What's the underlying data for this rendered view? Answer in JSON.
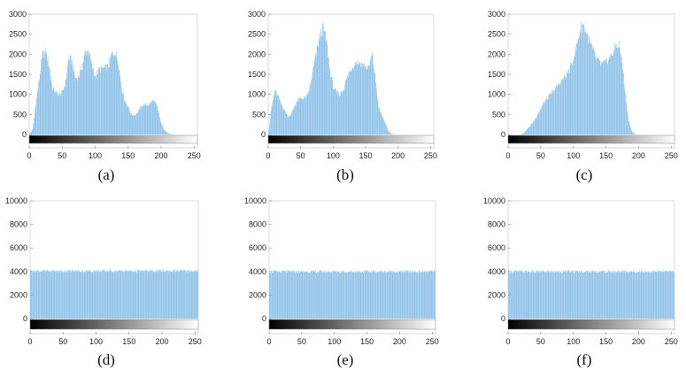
{
  "chart_data": [
    {
      "id": "a",
      "caption": "(a)",
      "type": "bar",
      "xlim": [
        0,
        255
      ],
      "ylim": [
        0,
        3000
      ],
      "xticks": [
        0,
        50,
        100,
        150,
        200,
        250
      ],
      "yticks": [
        0,
        500,
        1000,
        1500,
        2000,
        2500,
        3000
      ],
      "bar_color": "#8cc0e8",
      "colorbar": "grayscale 0-255",
      "profile_x": [
        0,
        5,
        10,
        15,
        20,
        25,
        30,
        35,
        40,
        45,
        50,
        55,
        60,
        65,
        70,
        75,
        80,
        85,
        90,
        95,
        100,
        105,
        110,
        115,
        120,
        125,
        130,
        135,
        140,
        145,
        150,
        155,
        160,
        165,
        170,
        175,
        180,
        185,
        190,
        195,
        200,
        205,
        210,
        215,
        220,
        225,
        230,
        235,
        240,
        245,
        250,
        255
      ],
      "profile_y": [
        0,
        150,
        800,
        1400,
        2000,
        2050,
        1700,
        1150,
        1050,
        1000,
        1050,
        1300,
        1950,
        1800,
        1400,
        1450,
        1700,
        2050,
        2100,
        1700,
        1450,
        1600,
        1650,
        1650,
        1700,
        2000,
        2050,
        1850,
        1200,
        850,
        700,
        500,
        480,
        550,
        700,
        750,
        730,
        800,
        860,
        650,
        300,
        120,
        40,
        10,
        0,
        0,
        0,
        0,
        0,
        0,
        0,
        0
      ]
    },
    {
      "id": "b",
      "caption": "(b)",
      "type": "bar",
      "xlim": [
        0,
        255
      ],
      "ylim": [
        0,
        3000
      ],
      "xticks": [
        0,
        50,
        100,
        150,
        200,
        250
      ],
      "yticks": [
        0,
        500,
        1000,
        1500,
        2000,
        2500,
        3000
      ],
      "bar_color": "#8cc0e8",
      "colorbar": "grayscale 0-255",
      "profile_x": [
        0,
        5,
        10,
        15,
        20,
        25,
        30,
        35,
        40,
        45,
        50,
        55,
        60,
        65,
        70,
        75,
        80,
        85,
        90,
        95,
        100,
        105,
        110,
        115,
        120,
        125,
        130,
        135,
        140,
        145,
        150,
        155,
        160,
        165,
        170,
        175,
        180,
        185,
        190,
        195,
        200,
        205,
        210,
        215,
        220,
        225,
        230,
        235,
        240,
        245,
        250,
        255
      ],
      "profile_y": [
        0,
        700,
        1100,
        950,
        750,
        600,
        450,
        500,
        700,
        850,
        900,
        900,
        950,
        1250,
        1700,
        2100,
        2500,
        2650,
        2300,
        1600,
        1200,
        1050,
        1000,
        1100,
        1350,
        1550,
        1700,
        1800,
        1800,
        1750,
        1700,
        1650,
        2000,
        1450,
        700,
        500,
        300,
        100,
        20,
        0,
        0,
        0,
        0,
        0,
        0,
        0,
        0,
        0,
        0,
        0,
        0,
        0
      ]
    },
    {
      "id": "c",
      "caption": "(c)",
      "type": "bar",
      "xlim": [
        0,
        255
      ],
      "ylim": [
        0,
        3000
      ],
      "xticks": [
        0,
        50,
        100,
        150,
        200,
        250
      ],
      "yticks": [
        0,
        500,
        1000,
        1500,
        2000,
        2500,
        3000
      ],
      "bar_color": "#8cc0e8",
      "colorbar": "grayscale 0-255",
      "profile_x": [
        0,
        5,
        10,
        15,
        20,
        25,
        30,
        35,
        40,
        45,
        50,
        55,
        60,
        65,
        70,
        75,
        80,
        85,
        90,
        95,
        100,
        105,
        110,
        115,
        120,
        125,
        130,
        135,
        140,
        145,
        150,
        155,
        160,
        165,
        170,
        175,
        180,
        185,
        190,
        195,
        200,
        205,
        210,
        215,
        220,
        225,
        230,
        235,
        240,
        245,
        250,
        255
      ],
      "profile_y": [
        0,
        0,
        0,
        0,
        10,
        60,
        150,
        250,
        350,
        500,
        650,
        800,
        900,
        1000,
        1100,
        1200,
        1300,
        1400,
        1500,
        1650,
        1900,
        2200,
        2600,
        2750,
        2550,
        2300,
        2100,
        1900,
        1800,
        1750,
        1800,
        1900,
        2000,
        2200,
        2250,
        1800,
        1000,
        350,
        80,
        10,
        0,
        0,
        0,
        0,
        0,
        0,
        0,
        0,
        0,
        0,
        0,
        0
      ]
    },
    {
      "id": "d",
      "caption": "(d)",
      "type": "bar",
      "xlim": [
        0,
        255
      ],
      "ylim": [
        0,
        10000
      ],
      "xticks": [
        0,
        50,
        100,
        150,
        200,
        250
      ],
      "yticks": [
        0,
        2000,
        4000,
        6000,
        8000,
        10000
      ],
      "bar_color": "#8cc0e8",
      "colorbar": "grayscale 0-255",
      "profile_x": [
        0,
        255
      ],
      "profile_y": [
        4050,
        4050
      ]
    },
    {
      "id": "e",
      "caption": "(e)",
      "type": "bar",
      "xlim": [
        0,
        255
      ],
      "ylim": [
        0,
        10000
      ],
      "xticks": [
        0,
        50,
        100,
        150,
        200,
        250
      ],
      "yticks": [
        0,
        2000,
        4000,
        6000,
        8000,
        10000
      ],
      "bar_color": "#8cc0e8",
      "colorbar": "grayscale 0-255",
      "profile_x": [
        0,
        255
      ],
      "profile_y": [
        4000,
        4000
      ]
    },
    {
      "id": "f",
      "caption": "(f)",
      "type": "bar",
      "xlim": [
        0,
        255
      ],
      "ylim": [
        0,
        10000
      ],
      "xticks": [
        0,
        50,
        100,
        150,
        200,
        250
      ],
      "yticks": [
        0,
        2000,
        4000,
        6000,
        8000,
        10000
      ],
      "bar_color": "#8cc0e8",
      "colorbar": "grayscale 0-255",
      "profile_x": [
        0,
        255
      ],
      "profile_y": [
        4000,
        4000
      ]
    }
  ]
}
